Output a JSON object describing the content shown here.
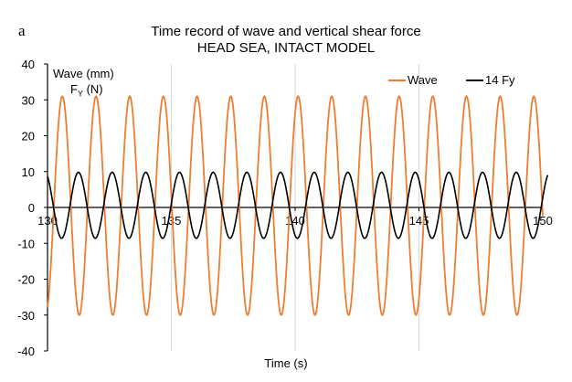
{
  "panel_label": "a",
  "chart_data": {
    "type": "line",
    "title": "Time record of wave and vertical shear force",
    "subtitle": "HEAD SEA, INTACT MODEL",
    "xlabel": "Time (s)",
    "ylabel_line1": "Wave (mm)",
    "ylabel_line2_main": "F",
    "ylabel_line2_sub": "Y",
    "ylabel_line2_unit": " (N)",
    "xlim": [
      130,
      150
    ],
    "ylim": [
      -40,
      40
    ],
    "x_ticks": [
      130,
      135,
      140,
      145,
      150
    ],
    "x_tick_labels": [
      "130",
      "135",
      "140",
      "145",
      "150"
    ],
    "y_ticks": [
      -40,
      -30,
      -20,
      -10,
      0,
      10,
      20,
      30,
      40
    ],
    "y_tick_labels": [
      "-40",
      "-30",
      "-20",
      "-10",
      "0",
      "10",
      "20",
      "30",
      "40"
    ],
    "grid": "vertical",
    "legend_position": "top-right",
    "series": [
      {
        "name": "Wave",
        "color": "#ED7D31",
        "amplitude": 30.5,
        "offset": 0.5,
        "period_s": 1.36,
        "phase_ref_peak_time_s": 130.6,
        "x_end_s": 150
      },
      {
        "name": "14 Fy",
        "color": "#000000",
        "amplitude": 9.2,
        "offset": 0.6,
        "period_s": 1.36,
        "phase_ref_peak_time_s": 131.25,
        "x_end_s": 150.2
      }
    ]
  }
}
